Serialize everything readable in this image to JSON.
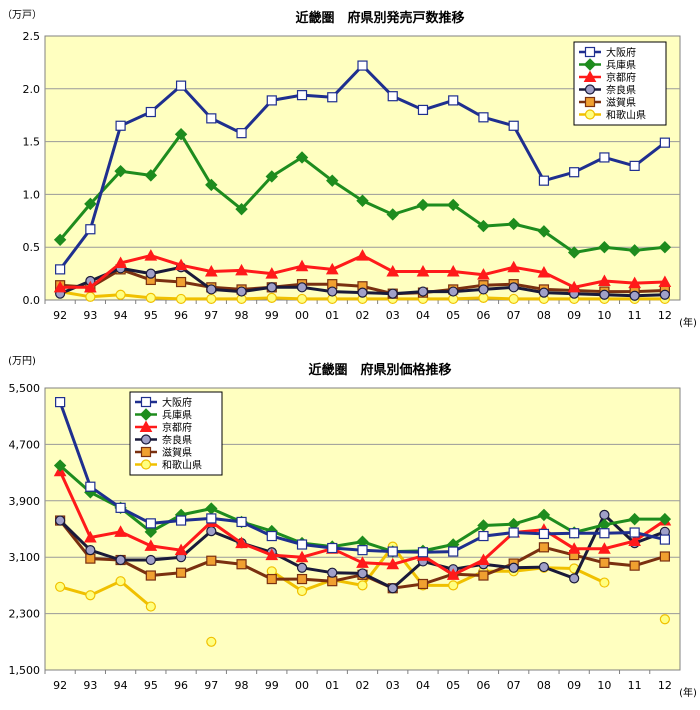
{
  "chart_data": [
    {
      "type": "line",
      "title": "近畿圏　府県別発売戸数推移",
      "yunit": "（万戸）",
      "xunit": "(年)",
      "categories": [
        "92",
        "93",
        "94",
        "95",
        "96",
        "97",
        "98",
        "99",
        "00",
        "01",
        "02",
        "03",
        "04",
        "05",
        "06",
        "07",
        "08",
        "09",
        "10",
        "11",
        "12"
      ],
      "ylim": [
        0,
        2.5
      ],
      "yticks": [
        "0.0",
        "0.5",
        "1.0",
        "1.5",
        "2.0",
        "2.5"
      ],
      "ytick_values": [
        0,
        0.5,
        1.0,
        1.5,
        2.0,
        2.5
      ],
      "grid": true,
      "legend_position": "top-right",
      "series": [
        {
          "name": "大阪府",
          "color": "#1f2f8f",
          "marker": "square",
          "fill": "#ffffff",
          "values": [
            0.29,
            0.67,
            1.65,
            1.78,
            2.03,
            1.72,
            1.58,
            1.89,
            1.94,
            1.92,
            2.22,
            1.93,
            1.8,
            1.89,
            1.73,
            1.65,
            1.13,
            1.21,
            1.35,
            1.27,
            1.49
          ]
        },
        {
          "name": "兵庫県",
          "color": "#1e8c1e",
          "marker": "diamond",
          "fill": "#1e8c1e",
          "values": [
            0.57,
            0.91,
            1.22,
            1.18,
            1.57,
            1.09,
            0.86,
            1.17,
            1.35,
            1.13,
            0.94,
            0.81,
            0.9,
            0.9,
            0.7,
            0.72,
            0.65,
            0.45,
            0.5,
            0.47,
            0.5
          ]
        },
        {
          "name": "京都府",
          "color": "#ff1a1a",
          "marker": "triangle",
          "fill": "#ff1a1a",
          "values": [
            0.12,
            0.12,
            0.35,
            0.42,
            0.33,
            0.27,
            0.28,
            0.25,
            0.32,
            0.29,
            0.42,
            0.27,
            0.27,
            0.27,
            0.24,
            0.31,
            0.26,
            0.12,
            0.18,
            0.16,
            0.17
          ]
        },
        {
          "name": "奈良県",
          "color": "#1a1a3a",
          "marker": "circle",
          "fill": "#a0a0c8",
          "values": [
            0.06,
            0.18,
            0.3,
            0.25,
            0.31,
            0.1,
            0.08,
            0.12,
            0.12,
            0.08,
            0.07,
            0.06,
            0.08,
            0.08,
            0.1,
            0.12,
            0.07,
            0.06,
            0.05,
            0.04,
            0.05
          ]
        },
        {
          "name": "滋賀県",
          "color": "#7a3010",
          "marker": "square",
          "fill": "#f0a030",
          "values": [
            0.14,
            0.12,
            0.29,
            0.19,
            0.17,
            0.12,
            0.1,
            0.12,
            0.15,
            0.15,
            0.13,
            0.06,
            0.07,
            0.1,
            0.14,
            0.15,
            0.1,
            0.09,
            0.08,
            0.08,
            0.09
          ]
        },
        {
          "name": "和歌山県",
          "color": "#f0c000",
          "marker": "circle",
          "fill": "#ffff80",
          "values": [
            0.08,
            0.03,
            0.05,
            0.02,
            0.01,
            0.01,
            0.01,
            0.02,
            0.01,
            0.01,
            0.01,
            0.01,
            0.01,
            0.01,
            0.02,
            0.01,
            0.01,
            0.01,
            0.01,
            0.01,
            0.01
          ]
        }
      ]
    },
    {
      "type": "line",
      "title": "近畿圏　府県別価格推移",
      "yunit": "(万円)",
      "xunit": "(年)",
      "categories": [
        "92",
        "93",
        "94",
        "95",
        "96",
        "97",
        "98",
        "99",
        "00",
        "01",
        "02",
        "03",
        "04",
        "05",
        "06",
        "07",
        "08",
        "09",
        "10",
        "11",
        "12"
      ],
      "ylim": [
        1500,
        5500
      ],
      "yticks": [
        "1,500",
        "2,300",
        "3,100",
        "3,900",
        "4,700",
        "5,500"
      ],
      "ytick_values": [
        1500,
        2300,
        3100,
        3900,
        4700,
        5500
      ],
      "grid": true,
      "legend_position": "top-left",
      "series": [
        {
          "name": "大阪府",
          "color": "#1f2f8f",
          "marker": "square",
          "fill": "#ffffff",
          "values": [
            5300,
            4100,
            3800,
            3580,
            3620,
            3650,
            3600,
            3400,
            3280,
            3230,
            3200,
            3180,
            3170,
            3180,
            3400,
            3450,
            3430,
            3440,
            3440,
            3450,
            3350
          ]
        },
        {
          "name": "兵庫県",
          "color": "#1e8c1e",
          "marker": "diamond",
          "fill": "#1e8c1e",
          "values": [
            4400,
            4020,
            3800,
            3460,
            3700,
            3790,
            3600,
            3470,
            3300,
            3250,
            3320,
            3180,
            3190,
            3280,
            3550,
            3570,
            3700,
            3450,
            3560,
            3640,
            3640
          ]
        },
        {
          "name": "京都府",
          "color": "#ff1a1a",
          "marker": "triangle",
          "fill": "#ff1a1a",
          "values": [
            4320,
            3380,
            3460,
            3260,
            3200,
            3600,
            3300,
            3130,
            3100,
            3220,
            3020,
            3000,
            3120,
            2850,
            3060,
            3450,
            3490,
            3220,
            3220,
            3330,
            3620
          ]
        },
        {
          "name": "奈良県",
          "color": "#1a1a3a",
          "marker": "circle",
          "fill": "#a0a0c8",
          "values": [
            3620,
            3200,
            3060,
            3060,
            3100,
            3470,
            3300,
            3170,
            2950,
            2880,
            2870,
            2660,
            3040,
            2930,
            3000,
            2950,
            2960,
            2800,
            3700,
            3300,
            3460
          ]
        },
        {
          "name": "滋賀県",
          "color": "#7a3010",
          "marker": "square",
          "fill": "#f0a030",
          "values": [
            3620,
            3080,
            3060,
            2840,
            2880,
            3050,
            3000,
            2790,
            2790,
            2760,
            2850,
            2660,
            2720,
            2860,
            2840,
            3010,
            3240,
            3130,
            3020,
            2980,
            3110
          ]
        },
        {
          "name": "和歌山県",
          "color": "#f0c000",
          "marker": "circle",
          "fill": "#ffff80",
          "values": [
            2680,
            2560,
            2760,
            2400,
            null,
            1900,
            null,
            2900,
            2620,
            2780,
            2700,
            3250,
            2700,
            2700,
            2900,
            2900,
            2950,
            2940,
            2740,
            null,
            2220
          ]
        }
      ]
    }
  ]
}
